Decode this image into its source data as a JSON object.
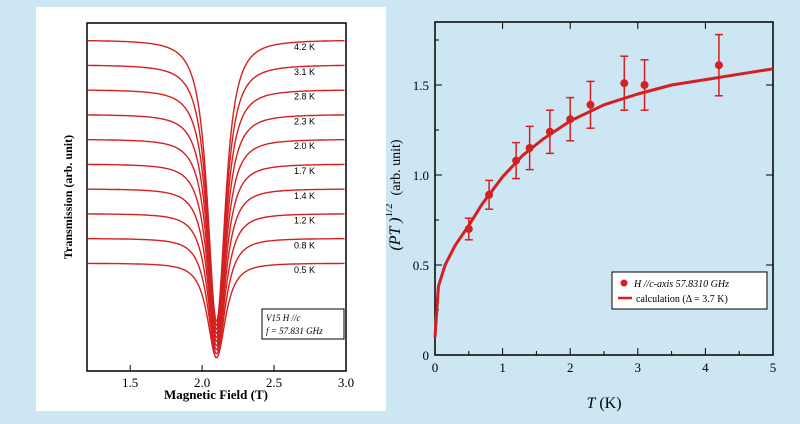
{
  "colors": {
    "page_background": "#cde6f3",
    "curve": "#d42020",
    "axis": "#000000"
  },
  "chart_data": [
    {
      "type": "line",
      "xlabel": "Magnetic Field (T)",
      "ylabel": "Transmission (arb. unit)",
      "xlim": [
        1.2,
        3.0
      ],
      "xticks": [
        "1.5",
        "2.0",
        "2.5",
        "3.0"
      ],
      "resonance_field": 2.1,
      "series": [
        {
          "name": "4.2 K",
          "temperature": 4.2
        },
        {
          "name": "3.1 K",
          "temperature": 3.1
        },
        {
          "name": "2.8 K",
          "temperature": 2.8
        },
        {
          "name": "2.3 K",
          "temperature": 2.3
        },
        {
          "name": "2.0 K",
          "temperature": 2.0
        },
        {
          "name": "1.7 K",
          "temperature": 1.7
        },
        {
          "name": "1.4 K",
          "temperature": 1.4
        },
        {
          "name": "1.2 K",
          "temperature": 1.2
        },
        {
          "name": "0.8 K",
          "temperature": 0.8
        },
        {
          "name": "0.5 K",
          "temperature": 0.5
        }
      ],
      "annotation": {
        "line1": "V15   H //c",
        "line2": "f = 57.831 GHz"
      }
    },
    {
      "type": "scatter",
      "xlabel_var": "T",
      "xlabel_unit": "(K)",
      "ylabel_var": "(PT )",
      "ylabel_exp": "1/2",
      "ylabel_unit": "(arb. unit)",
      "xlim": [
        0,
        5
      ],
      "ylim": [
        0,
        1.85
      ],
      "xticks": [
        "0",
        "1",
        "2",
        "3",
        "4",
        "5"
      ],
      "yticks": [
        "0",
        "0.5",
        "1.0",
        "1.5"
      ],
      "measured": {
        "name": "H //c-axis 57.8310 GHz",
        "x": [
          0.5,
          0.8,
          1.2,
          1.4,
          1.7,
          2.0,
          2.3,
          2.8,
          3.1,
          4.2
        ],
        "y": [
          0.7,
          0.89,
          1.08,
          1.15,
          1.24,
          1.31,
          1.39,
          1.51,
          1.5,
          1.61
        ],
        "err": [
          0.06,
          0.08,
          0.1,
          0.12,
          0.12,
          0.12,
          0.13,
          0.15,
          0.14,
          0.17
        ]
      },
      "calculation": {
        "name": "calculation  (Δ = 3.7 K)",
        "x": [
          0.0,
          0.05,
          0.15,
          0.3,
          0.5,
          0.7,
          1.0,
          1.3,
          1.6,
          2.0,
          2.5,
          3.0,
          3.5,
          4.0,
          4.5,
          5.0
        ],
        "y": [
          0.1,
          0.38,
          0.5,
          0.61,
          0.72,
          0.84,
          0.99,
          1.11,
          1.2,
          1.3,
          1.39,
          1.45,
          1.5,
          1.53,
          1.56,
          1.59
        ]
      },
      "legend_position": "bottom-right"
    }
  ]
}
